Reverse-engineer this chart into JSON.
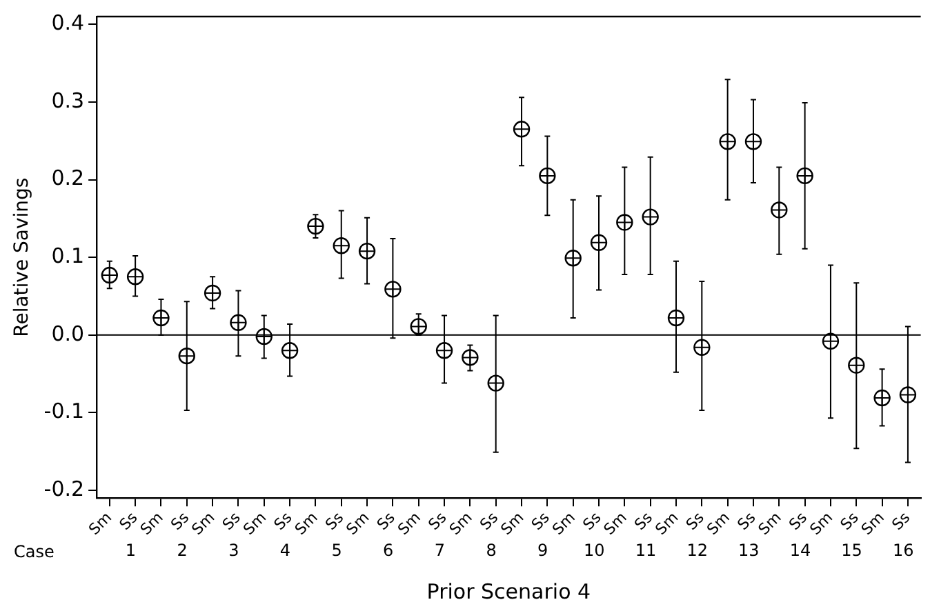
{
  "chart_data": {
    "type": "scatter",
    "xlabel": "Prior Scenario 4",
    "ylabel": "Relative Savings",
    "categories": [
      "Sm",
      "Ss",
      "Sm",
      "Ss",
      "Sm",
      "Ss",
      "Sm",
      "Ss",
      "Sm",
      "Ss",
      "Sm",
      "Ss",
      "Sm",
      "Ss",
      "Sm",
      "Ss",
      "Sm",
      "Ss",
      "Sm",
      "Ss",
      "Sm",
      "Ss",
      "Sm",
      "Ss",
      "Sm",
      "Ss",
      "Sm",
      "Ss",
      "Sm",
      "Ss",
      "Sm",
      "Ss"
    ],
    "series": [
      {
        "color": "#000000",
        "values": [
          0.077,
          0.075,
          0.022,
          -0.027,
          0.054,
          0.016,
          -0.002,
          -0.02,
          0.14,
          0.115,
          0.108,
          0.059,
          0.011,
          -0.02,
          -0.029,
          -0.062,
          0.265,
          0.205,
          0.099,
          0.119,
          0.145,
          0.152,
          0.022,
          -0.016,
          0.249,
          0.249,
          0.161,
          0.205,
          -0.008,
          -0.039,
          -0.081,
          -0.077
        ],
        "errors": [
          [
            0.06,
            0.095
          ],
          [
            0.05,
            0.102
          ],
          [
            0.0,
            0.046
          ],
          [
            -0.097,
            0.043
          ],
          [
            0.034,
            0.075
          ],
          [
            -0.027,
            0.057
          ],
          [
            -0.03,
            0.025
          ],
          [
            -0.053,
            0.014
          ],
          [
            0.125,
            0.155
          ],
          [
            0.073,
            0.16
          ],
          [
            0.066,
            0.151
          ],
          [
            -0.004,
            0.124
          ],
          [
            0.0,
            0.027
          ],
          [
            -0.062,
            0.025
          ],
          [
            -0.046,
            -0.013
          ],
          [
            -0.151,
            0.025
          ],
          [
            0.218,
            0.306
          ],
          [
            0.154,
            0.256
          ],
          [
            0.022,
            0.174
          ],
          [
            0.058,
            0.179
          ],
          [
            0.078,
            0.216
          ],
          [
            0.078,
            0.229
          ],
          [
            -0.048,
            0.095
          ],
          [
            -0.097,
            0.069
          ],
          [
            0.174,
            0.329
          ],
          [
            0.196,
            0.303
          ],
          [
            0.104,
            0.216
          ],
          [
            0.111,
            0.299
          ],
          [
            -0.107,
            0.09
          ],
          [
            -0.146,
            0.067
          ],
          [
            -0.117,
            -0.044
          ],
          [
            -0.164,
            0.011
          ]
        ]
      }
    ],
    "ylim": [
      -0.21,
      0.41
    ],
    "yticks": [
      {
        "value": -0.2,
        "label": "-0.2"
      },
      {
        "value": -0.1,
        "label": "-0.1"
      },
      {
        "value": 0,
        "label": "0.0"
      },
      {
        "value": 0.1,
        "label": "0.1"
      },
      {
        "value": 0.2,
        "label": "0.2"
      },
      {
        "value": 0.3,
        "label": "0.3"
      },
      {
        "value": 0.4,
        "label": "0.4"
      }
    ],
    "ref_lines": [
      {
        "axis": "y",
        "value": 0,
        "color": "#000000"
      }
    ],
    "annotations": [
      "Case",
      "1",
      "2",
      "3",
      "4",
      "5",
      "6",
      "7",
      "8",
      "9",
      "10",
      "11",
      "12",
      "13",
      "14",
      "15",
      "16"
    ],
    "marker": "circle",
    "grid": false,
    "legend": false
  }
}
